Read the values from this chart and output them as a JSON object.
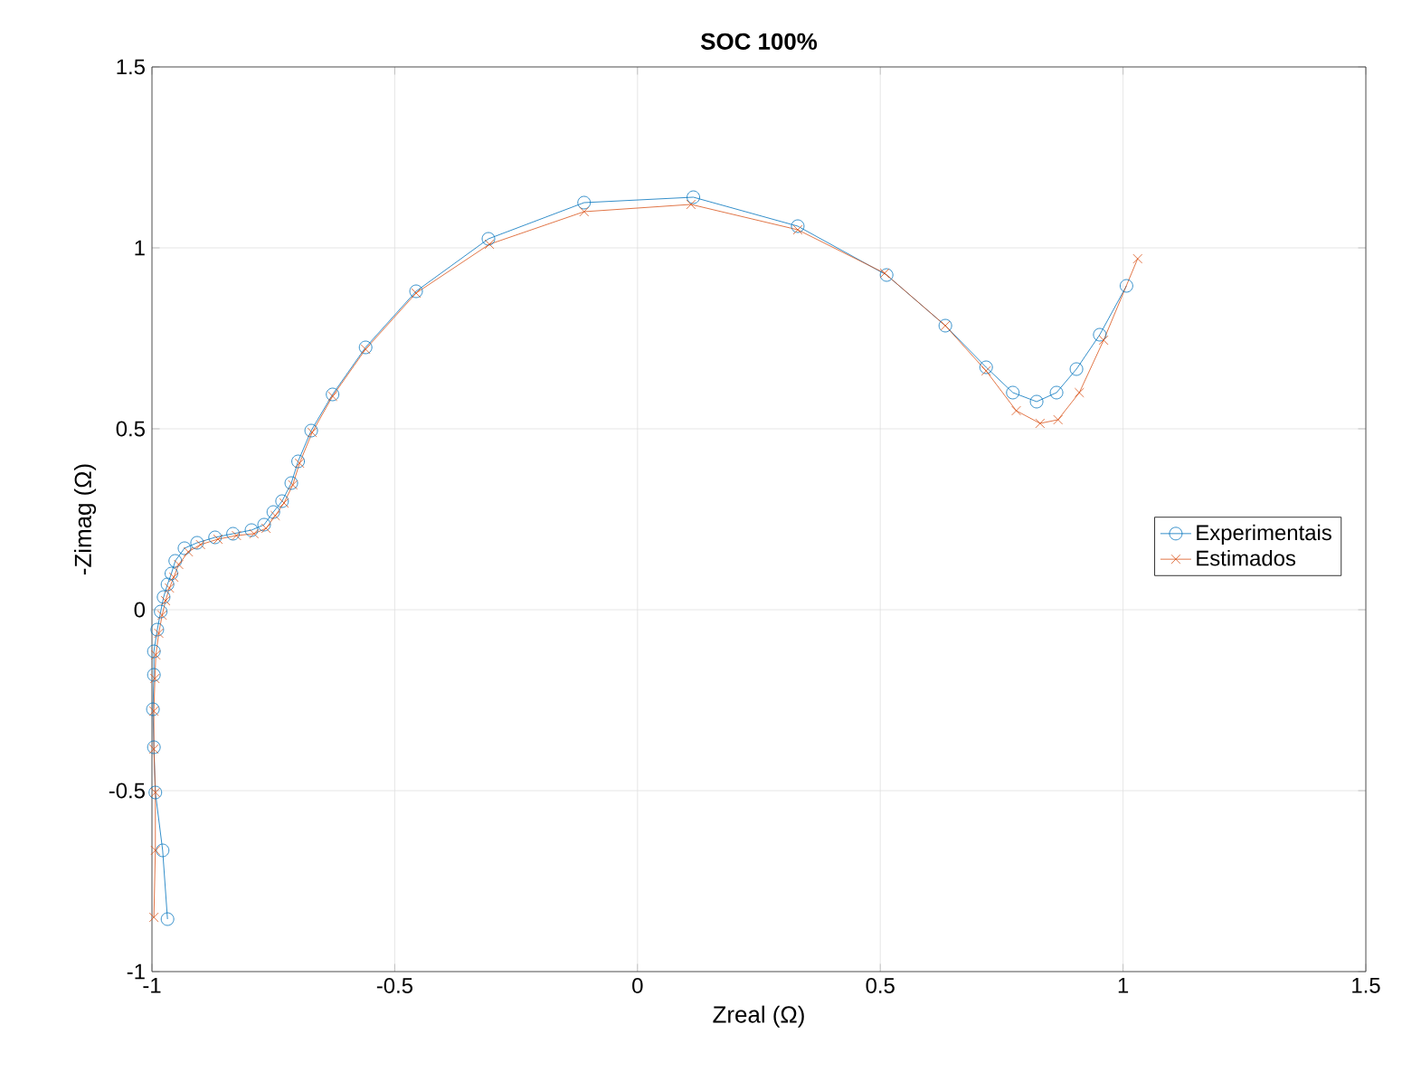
{
  "chart_data": {
    "type": "line",
    "title": "SOC 100%",
    "xlabel": "Zreal (Ω)",
    "ylabel": "-Zimag (Ω)",
    "xlim": [
      -1,
      1.5
    ],
    "ylim": [
      -1,
      1.5
    ],
    "xticks": [
      -1,
      -0.5,
      0,
      0.5,
      1,
      1.5
    ],
    "yticks": [
      -1,
      -0.5,
      0,
      0.5,
      1,
      1.5
    ],
    "grid": true,
    "legend": "right",
    "series": [
      {
        "name": "Experimentais",
        "color": "#0072bd",
        "marker": "circle",
        "line_style": "solid",
        "x": [
          -0.968,
          -0.978,
          -0.993,
          -0.996,
          -0.998,
          -0.996,
          -0.996,
          -0.989,
          -0.982,
          -0.976,
          -0.968,
          -0.96,
          -0.952,
          -0.933,
          -0.907,
          -0.87,
          -0.833,
          -0.795,
          -0.769,
          -0.75,
          -0.732,
          -0.713,
          -0.699,
          -0.672,
          -0.628,
          -0.56,
          -0.456,
          -0.307,
          -0.11,
          0.115,
          0.33,
          0.513,
          0.634,
          0.718,
          0.773,
          0.822,
          0.863,
          0.904,
          0.952,
          1.007
        ],
        "values": [
          -0.855,
          -0.665,
          -0.505,
          -0.38,
          -0.275,
          -0.18,
          -0.115,
          -0.055,
          -0.005,
          0.035,
          0.07,
          0.1,
          0.135,
          0.17,
          0.185,
          0.2,
          0.21,
          0.22,
          0.235,
          0.27,
          0.3,
          0.35,
          0.41,
          0.495,
          0.595,
          0.725,
          0.88,
          1.025,
          1.125,
          1.14,
          1.06,
          0.925,
          0.785,
          0.67,
          0.6,
          0.575,
          0.6,
          0.665,
          0.76,
          0.895
        ]
      },
      {
        "name": "Estimados",
        "color": "#d95319",
        "marker": "cross",
        "line_style": "solid",
        "x": [
          -0.996,
          -0.993,
          -0.993,
          -0.996,
          -0.996,
          -0.994,
          -0.992,
          -0.986,
          -0.979,
          -0.972,
          -0.964,
          -0.955,
          -0.945,
          -0.925,
          -0.9,
          -0.864,
          -0.826,
          -0.79,
          -0.765,
          -0.746,
          -0.728,
          -0.71,
          -0.696,
          -0.67,
          -0.628,
          -0.56,
          -0.456,
          -0.305,
          -0.11,
          0.11,
          0.33,
          0.509,
          0.634,
          0.718,
          0.78,
          0.829,
          0.866,
          0.91,
          0.96,
          1.03
        ],
        "values": [
          -0.85,
          -0.665,
          -0.505,
          -0.385,
          -0.28,
          -0.19,
          -0.125,
          -0.065,
          -0.015,
          0.025,
          0.06,
          0.09,
          0.125,
          0.16,
          0.18,
          0.195,
          0.205,
          0.21,
          0.225,
          0.26,
          0.295,
          0.345,
          0.405,
          0.49,
          0.59,
          0.72,
          0.875,
          1.01,
          1.1,
          1.12,
          1.05,
          0.93,
          0.785,
          0.66,
          0.55,
          0.515,
          0.525,
          0.6,
          0.745,
          0.97
        ]
      }
    ]
  }
}
